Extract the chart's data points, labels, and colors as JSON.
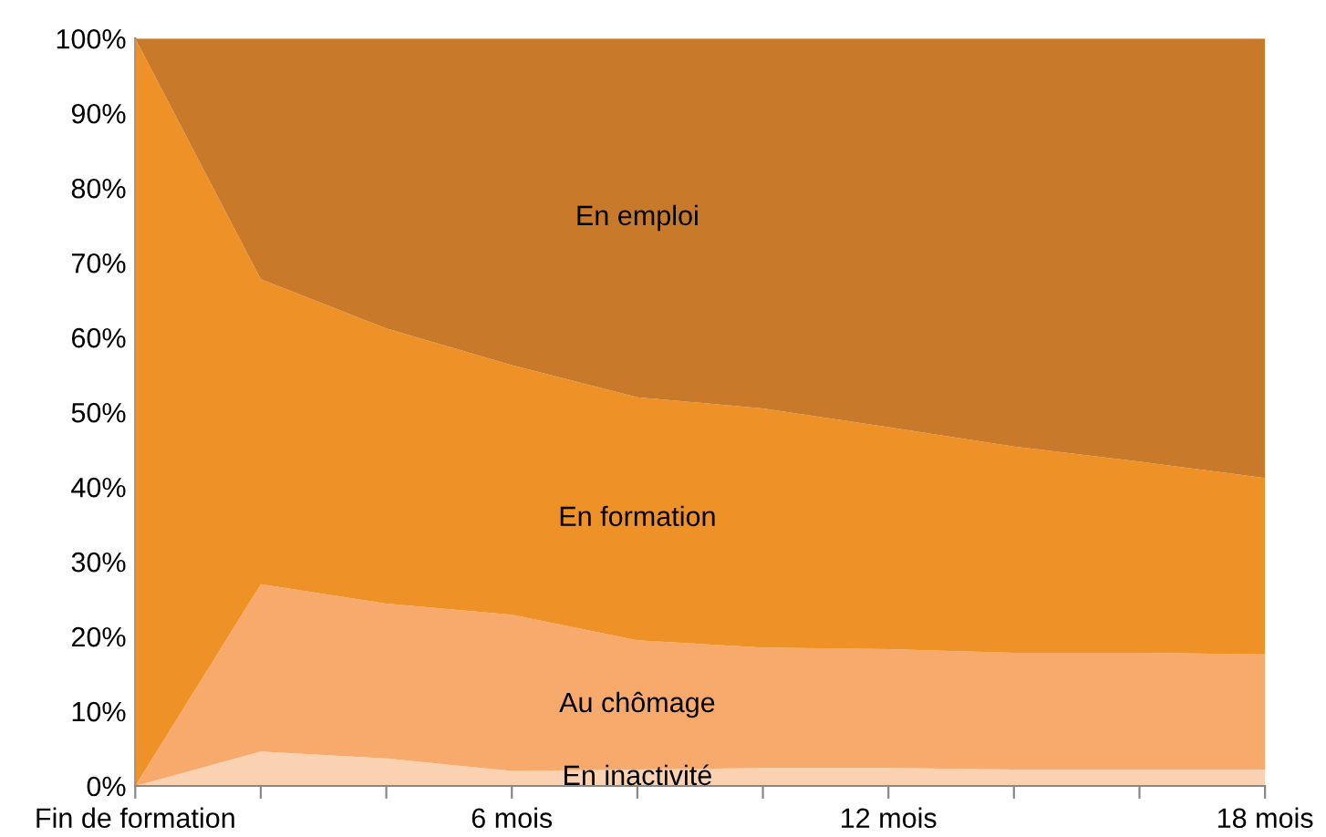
{
  "chart_data": {
    "type": "area",
    "stacked": true,
    "x": [
      0,
      2,
      4,
      6,
      8,
      10,
      12,
      14,
      16,
      18
    ],
    "xlim": [
      0,
      18
    ],
    "xticks": [
      {
        "value": 0,
        "label": "Fin de formation"
      },
      {
        "value": 2,
        "label": null
      },
      {
        "value": 4,
        "label": null
      },
      {
        "value": 6,
        "label": "6 mois"
      },
      {
        "value": 8,
        "label": null
      },
      {
        "value": 10,
        "label": null
      },
      {
        "value": 12,
        "label": "12 mois"
      },
      {
        "value": 14,
        "label": null
      },
      {
        "value": 16,
        "label": null
      },
      {
        "value": 18,
        "label": "18 mois"
      }
    ],
    "ylim": [
      0,
      100
    ],
    "yticks": [
      {
        "value": 0,
        "label": "0%"
      },
      {
        "value": 10,
        "label": "10%"
      },
      {
        "value": 20,
        "label": "20%"
      },
      {
        "value": 30,
        "label": "30%"
      },
      {
        "value": 40,
        "label": "40%"
      },
      {
        "value": 50,
        "label": "50%"
      },
      {
        "value": 60,
        "label": "60%"
      },
      {
        "value": 70,
        "label": "70%"
      },
      {
        "value": 80,
        "label": "80%"
      },
      {
        "value": 90,
        "label": "90%"
      },
      {
        "value": 100,
        "label": "100%"
      }
    ],
    "grid": false,
    "legend": false,
    "series": [
      {
        "name": "En inactivité",
        "color": "#fad2b2",
        "values": [
          0,
          4.6,
          3.7,
          2,
          2.2,
          2.4,
          2.4,
          2.2,
          2.2,
          2.2
        ]
      },
      {
        "name": "Au chômage",
        "color": "#f8aa6c",
        "values": [
          0,
          22.4,
          20.7,
          20.9,
          17.3,
          16.1,
          15.9,
          15.6,
          15.6,
          15.4
        ]
      },
      {
        "name": "En formation",
        "color": "#ee9126",
        "values": [
          100,
          40.8,
          36.8,
          33.4,
          32.5,
          32,
          29.7,
          27.6,
          25.6,
          23.6
        ]
      },
      {
        "name": "En emploi",
        "color": "#c8792a",
        "values": [
          0,
          32.2,
          38.8,
          43.7,
          48,
          49.5,
          52,
          54.6,
          56.6,
          58.8
        ]
      }
    ]
  }
}
